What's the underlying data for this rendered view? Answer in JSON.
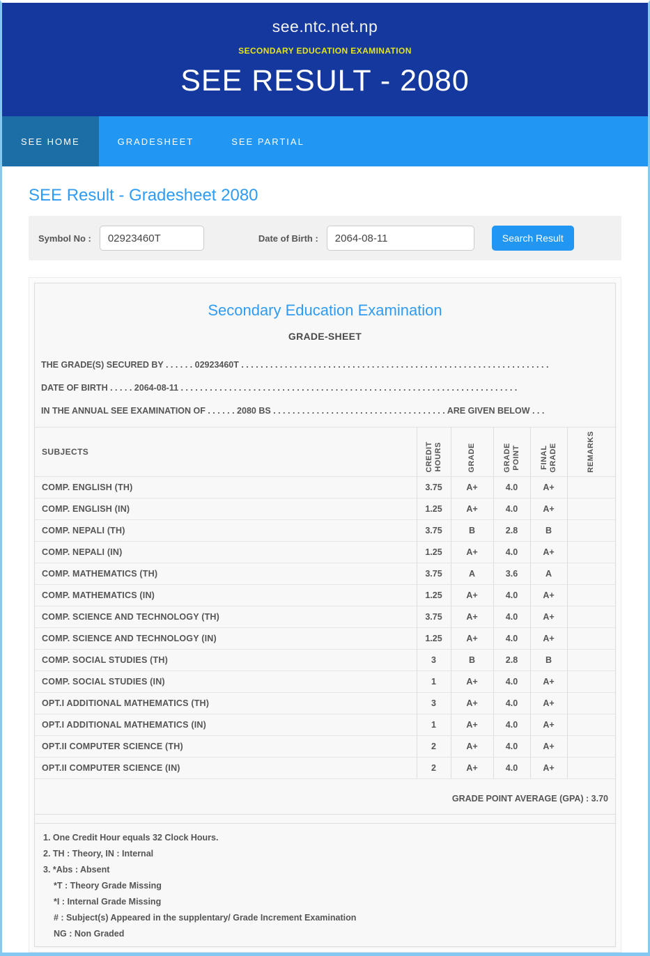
{
  "header": {
    "site": "see.ntc.net.np",
    "subtitle": "SECONDARY EDUCATION EXAMINATION",
    "title": "SEE RESULT - 2080"
  },
  "nav": {
    "tabs": [
      {
        "label": "SEE HOME",
        "active": true
      },
      {
        "label": "GRADESHEET",
        "active": false
      },
      {
        "label": "SEE PARTIAL",
        "active": false
      }
    ]
  },
  "heading": "SEE Result - Gradesheet 2080",
  "search_form": {
    "symbol_label": "Symbol No :",
    "symbol_value": "02923460T",
    "dob_label": "Date of Birth :",
    "dob_value": "2064-08-11",
    "button_label": "Search Result"
  },
  "sheet": {
    "org_title": "Secondary Education Examination",
    "doc_title": "GRADE-SHEET",
    "line1": "THE GRADE(S) SECURED BY . . . . . . 02923460T . . . . . . . . . . . . . . . . . . . . . . . . . . . . . . . . . . . . . . . . . . . . . . . . . . . . . . . . . . . . . . . .",
    "line2": "DATE OF BIRTH . . . . . 2064-08-11 . . . . . . . . . . . . . . . . . . . . . . . . . . . . . . . . . . . . . . . . . . . . . . . . . . . . . . . . . . . . . . . . . . . . . .",
    "line3": "IN THE ANNUAL SEE EXAMINATION OF . . . . . . 2080 BS . . . . . . . . . . . . . . . . . . . . . . . . . . . . . . . . . . . . ARE GIVEN BELOW . . .",
    "table": {
      "columns": [
        "SUBJECTS",
        "CREDIT\nHOURS",
        "GRADE",
        "GRADE\nPOINT",
        "FINAL\nGRADE",
        "REMARKS"
      ],
      "rows": [
        {
          "subject": "COMP. ENGLISH (TH)",
          "credit": "3.75",
          "grade": "A+",
          "grade_point": "4.0",
          "final_grade": "A+",
          "remarks": ""
        },
        {
          "subject": "COMP. ENGLISH (IN)",
          "credit": "1.25",
          "grade": "A+",
          "grade_point": "4.0",
          "final_grade": "A+",
          "remarks": ""
        },
        {
          "subject": "COMP. NEPALI (TH)",
          "credit": "3.75",
          "grade": "B",
          "grade_point": "2.8",
          "final_grade": "B",
          "remarks": ""
        },
        {
          "subject": "COMP. NEPALI (IN)",
          "credit": "1.25",
          "grade": "A+",
          "grade_point": "4.0",
          "final_grade": "A+",
          "remarks": ""
        },
        {
          "subject": "COMP. MATHEMATICS (TH)",
          "credit": "3.75",
          "grade": "A",
          "grade_point": "3.6",
          "final_grade": "A",
          "remarks": ""
        },
        {
          "subject": "COMP. MATHEMATICS (IN)",
          "credit": "1.25",
          "grade": "A+",
          "grade_point": "4.0",
          "final_grade": "A+",
          "remarks": ""
        },
        {
          "subject": "COMP. SCIENCE AND TECHNOLOGY (TH)",
          "credit": "3.75",
          "grade": "A+",
          "grade_point": "4.0",
          "final_grade": "A+",
          "remarks": ""
        },
        {
          "subject": "COMP. SCIENCE AND TECHNOLOGY (IN)",
          "credit": "1.25",
          "grade": "A+",
          "grade_point": "4.0",
          "final_grade": "A+",
          "remarks": ""
        },
        {
          "subject": "COMP. SOCIAL STUDIES (TH)",
          "credit": "3",
          "grade": "B",
          "grade_point": "2.8",
          "final_grade": "B",
          "remarks": ""
        },
        {
          "subject": "COMP. SOCIAL STUDIES (IN)",
          "credit": "1",
          "grade": "A+",
          "grade_point": "4.0",
          "final_grade": "A+",
          "remarks": ""
        },
        {
          "subject": "OPT.I ADDITIONAL MATHEMATICS (TH)",
          "credit": "3",
          "grade": "A+",
          "grade_point": "4.0",
          "final_grade": "A+",
          "remarks": ""
        },
        {
          "subject": "OPT.I ADDITIONAL MATHEMATICS (IN)",
          "credit": "1",
          "grade": "A+",
          "grade_point": "4.0",
          "final_grade": "A+",
          "remarks": ""
        },
        {
          "subject": "OPT.II COMPUTER SCIENCE (TH)",
          "credit": "2",
          "grade": "A+",
          "grade_point": "4.0",
          "final_grade": "A+",
          "remarks": ""
        },
        {
          "subject": "OPT.II COMPUTER SCIENCE (IN)",
          "credit": "2",
          "grade": "A+",
          "grade_point": "4.0",
          "final_grade": "A+",
          "remarks": ""
        }
      ]
    },
    "gpa_label": "GRADE POINT AVERAGE (GPA) : 3.70",
    "notes": [
      "1. One Credit Hour equals 32 Clock Hours.",
      "2. TH : Theory, IN : Internal",
      "3. *Abs : Absent",
      "*T : Theory Grade Missing",
      "*I : Internal Grade Missing",
      "# : Subject(s) Appeared in the supplentary/ Grade Increment Examination",
      "NG : Non Graded"
    ]
  },
  "colors": {
    "header_navy": "#14389d",
    "subtitle_yellow": "#e4e31f",
    "nav_blue": "#2196f3",
    "active_tab_blue": "#1c6fa6",
    "accent_blue": "#2f9bf2",
    "page_edge_blue": "#85c9f0",
    "text_gray": "#555555"
  }
}
